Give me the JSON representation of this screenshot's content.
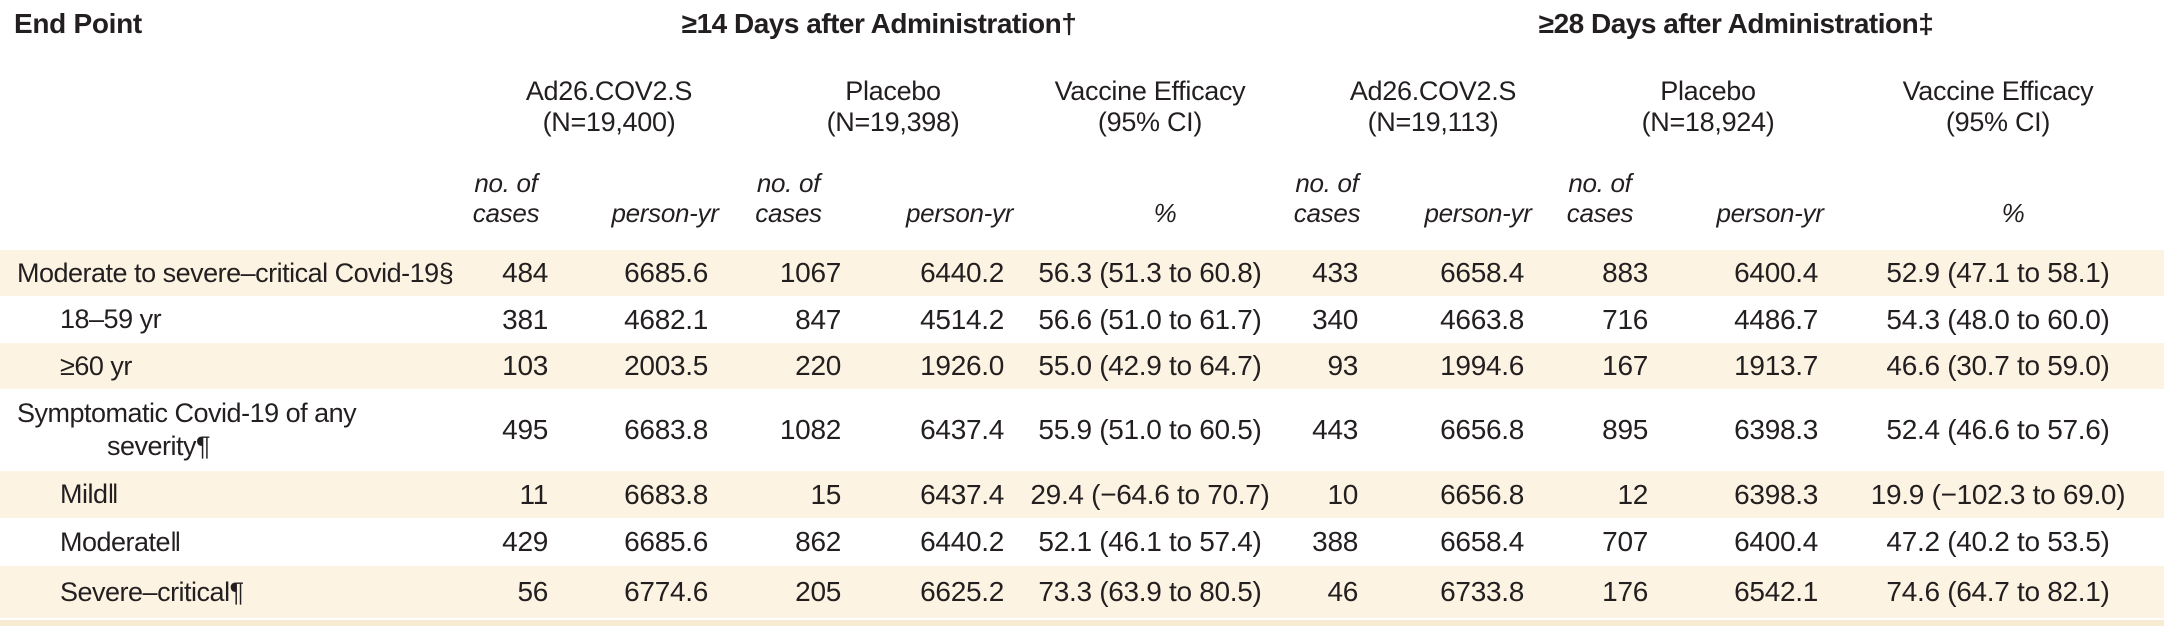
{
  "colors": {
    "row_shade": "#fdf3e2",
    "row_shade_dark": "#f7ebd2",
    "text": "#231f20"
  },
  "title_row": {
    "endpoint": "End Point",
    "group14": "≥14 Days after Administration†",
    "group28": "≥28 Days after Administration‡"
  },
  "arm_headers": [
    {
      "name": "Ad26.COV2.S",
      "n": "(N=19,400)"
    },
    {
      "name": "Placebo",
      "n": "(N=19,398)"
    },
    {
      "name": "Vaccine Efficacy",
      "n": "(95% CI)"
    },
    {
      "name": "Ad26.COV2.S",
      "n": "(N=19,113)"
    },
    {
      "name": "Placebo",
      "n": "(N=18,924)"
    },
    {
      "name": "Vaccine Efficacy",
      "n": "(95% CI)"
    }
  ],
  "col_headers": {
    "cases_l1": "no. of",
    "cases_l2": "cases",
    "person_yr": "person-yr",
    "percent": "%"
  },
  "rows": [
    {
      "label": "Moderate to severe–critical Covid-19§",
      "d14": {
        "vaccine_cases": "484",
        "vaccine_py": "6685.6",
        "placebo_cases": "1067",
        "placebo_py": "6440.2",
        "ve": "56.3 (51.3 to 60.8)"
      },
      "d28": {
        "vaccine_cases": "433",
        "vaccine_py": "6658.4",
        "placebo_cases": "883",
        "placebo_py": "6400.4",
        "ve": "52.9 (47.1 to 58.1)"
      }
    },
    {
      "label": "18–59 yr",
      "d14": {
        "vaccine_cases": "381",
        "vaccine_py": "4682.1",
        "placebo_cases": "847",
        "placebo_py": "4514.2",
        "ve": "56.6 (51.0 to 61.7)"
      },
      "d28": {
        "vaccine_cases": "340",
        "vaccine_py": "4663.8",
        "placebo_cases": "716",
        "placebo_py": "4486.7",
        "ve": "54.3 (48.0 to 60.0)"
      }
    },
    {
      "label": "≥60 yr",
      "d14": {
        "vaccine_cases": "103",
        "vaccine_py": "2003.5",
        "placebo_cases": "220",
        "placebo_py": "1926.0",
        "ve": "55.0 (42.9 to 64.7)"
      },
      "d28": {
        "vaccine_cases": "93",
        "vaccine_py": "1994.6",
        "placebo_cases": "167",
        "placebo_py": "1913.7",
        "ve": "46.6 (30.7 to 59.0)"
      }
    },
    {
      "label": "Symptomatic Covid-19 of any severity¶",
      "d14": {
        "vaccine_cases": "495",
        "vaccine_py": "6683.8",
        "placebo_cases": "1082",
        "placebo_py": "6437.4",
        "ve": "55.9 (51.0 to 60.5)"
      },
      "d28": {
        "vaccine_cases": "443",
        "vaccine_py": "6656.8",
        "placebo_cases": "895",
        "placebo_py": "6398.3",
        "ve": "52.4 (46.6 to 57.6)"
      }
    },
    {
      "label": "Mild‖",
      "d14": {
        "vaccine_cases": "11",
        "vaccine_py": "6683.8",
        "placebo_cases": "15",
        "placebo_py": "6437.4",
        "ve": "29.4 (−64.6 to 70.7)"
      },
      "d28": {
        "vaccine_cases": "10",
        "vaccine_py": "6656.8",
        "placebo_cases": "12",
        "placebo_py": "6398.3",
        "ve": "19.9 (−102.3 to 69.0)"
      }
    },
    {
      "label": "Moderate‖",
      "d14": {
        "vaccine_cases": "429",
        "vaccine_py": "6685.6",
        "placebo_cases": "862",
        "placebo_py": "6440.2",
        "ve": "52.1 (46.1 to 57.4)"
      },
      "d28": {
        "vaccine_cases": "388",
        "vaccine_py": "6658.4",
        "placebo_cases": "707",
        "placebo_py": "6400.4",
        "ve": "47.2 (40.2 to 53.5)"
      }
    },
    {
      "label": "Severe–critical¶",
      "d14": {
        "vaccine_cases": "56",
        "vaccine_py": "6774.6",
        "placebo_cases": "205",
        "placebo_py": "6625.2",
        "ve": "73.3 (63.9 to 80.5)"
      },
      "d28": {
        "vaccine_cases": "46",
        "vaccine_py": "6733.8",
        "placebo_cases": "176",
        "placebo_py": "6542.1",
        "ve": "74.6 (64.7 to 82.1)"
      }
    }
  ]
}
